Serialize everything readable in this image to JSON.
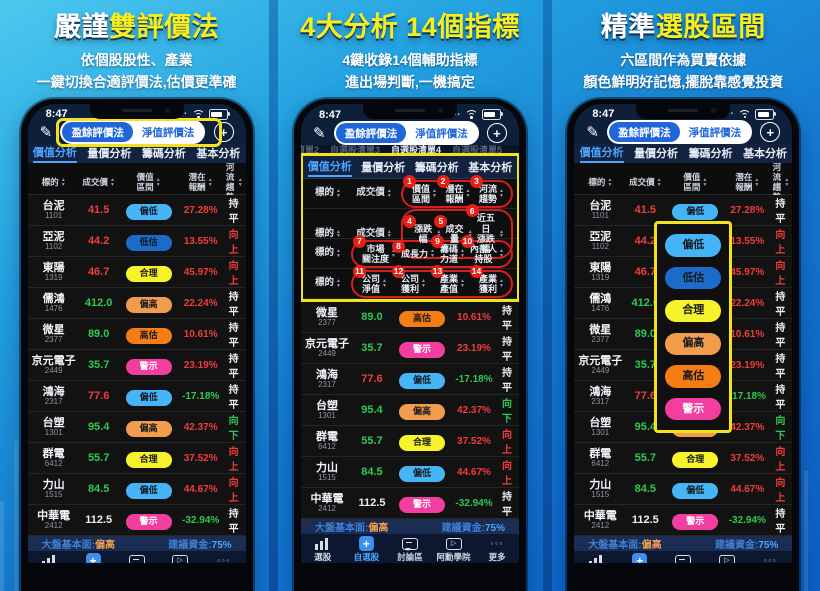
{
  "panels": [
    {
      "id": "dual-valuation",
      "title": [
        {
          "text": "嚴謹",
          "color": "white"
        },
        {
          "text": "雙評價法",
          "color": "yellow"
        }
      ],
      "subtitle": [
        "依個股股性、產業",
        "一鍵切換合適評價法,估價更準確"
      ]
    },
    {
      "id": "four-analysis",
      "title": [
        {
          "text": "4大分析 14個指標",
          "color": "yellow"
        }
      ],
      "subtitle": [
        "4鍵收錄14個輔助指標",
        "進出場判斷,一機搞定"
      ]
    },
    {
      "id": "pick-range",
      "title": [
        {
          "text": "精準",
          "color": "white"
        },
        {
          "text": "選股區間",
          "color": "yellow"
        }
      ],
      "subtitle": [
        "六區間作為買賣依據",
        "顏色鮮明好記憶,擺脫靠感覺投資"
      ]
    }
  ],
  "phone": {
    "status": {
      "time": "8:47"
    },
    "header": {
      "toggle": [
        {
          "label": "盈餘評價法",
          "active": true
        },
        {
          "label": "淨值評價法",
          "active": false
        }
      ],
      "add_label": "+"
    },
    "watchlist_tabs": [
      {
        "label": "清單2",
        "active": false
      },
      {
        "label": "自選股清單3",
        "active": false
      },
      {
        "label": "自選股清單4",
        "active": true
      },
      {
        "label": "自選股清單5",
        "active": false
      }
    ],
    "analysis_tabs": [
      {
        "label": "價值分析",
        "active": true
      },
      {
        "label": "量價分析",
        "active": false
      },
      {
        "label": "籌碼分析",
        "active": false
      },
      {
        "label": "基本分析",
        "active": false
      }
    ],
    "table": {
      "headers": [
        "標的",
        "成交價",
        "價值\n區間",
        "潛在\n報酬",
        "河流\n趨勢"
      ],
      "rows": [
        {
          "name": "台泥",
          "code": "1101",
          "price": "41.5",
          "price_color": "red",
          "badge": "偏低",
          "badge_type": "low",
          "pct": "27.28%",
          "pct_color": "red",
          "trend": "持平",
          "trend_color": "white"
        },
        {
          "name": "亞泥",
          "code": "1102",
          "price": "44.2",
          "price_color": "red",
          "badge": "低估",
          "badge_type": "under",
          "pct": "13.55%",
          "pct_color": "red",
          "trend": "向上",
          "trend_color": "red"
        },
        {
          "name": "東陽",
          "code": "1319",
          "price": "46.7",
          "price_color": "red",
          "badge": "合理",
          "badge_type": "fair",
          "pct": "45.97%",
          "pct_color": "red",
          "trend": "向上",
          "trend_color": "red"
        },
        {
          "name": "儒鴻",
          "code": "1476",
          "price": "412.0",
          "price_color": "green",
          "badge": "偏高",
          "badge_type": "high",
          "pct": "22.24%",
          "pct_color": "red",
          "trend": "持平",
          "trend_color": "white"
        },
        {
          "name": "微星",
          "code": "2377",
          "price": "89.0",
          "price_color": "green",
          "badge": "高估",
          "badge_type": "over",
          "pct": "10.61%",
          "pct_color": "red",
          "trend": "持平",
          "trend_color": "white"
        },
        {
          "name": "京元電子",
          "code": "2449",
          "price": "35.7",
          "price_color": "green",
          "badge": "警示",
          "badge_type": "alert",
          "pct": "23.19%",
          "pct_color": "red",
          "trend": "持平",
          "trend_color": "white"
        },
        {
          "name": "鴻海",
          "code": "2317",
          "price": "77.6",
          "price_color": "red",
          "badge": "偏低",
          "badge_type": "low",
          "pct": "-17.18%",
          "pct_color": "green",
          "trend": "持平",
          "trend_color": "white"
        },
        {
          "name": "台塑",
          "code": "1301",
          "price": "95.4",
          "price_color": "green",
          "badge": "偏高",
          "badge_type": "high",
          "pct": "42.37%",
          "pct_color": "red",
          "trend": "向下",
          "trend_color": "green"
        },
        {
          "name": "群電",
          "code": "6412",
          "price": "55.7",
          "price_color": "green",
          "badge": "合理",
          "badge_type": "fair",
          "pct": "37.52%",
          "pct_color": "red",
          "trend": "向上",
          "trend_color": "red"
        },
        {
          "name": "力山",
          "code": "1515",
          "price": "84.5",
          "price_color": "green",
          "badge": "偏低",
          "badge_type": "low",
          "pct": "44.67%",
          "pct_color": "red",
          "trend": "向上",
          "trend_color": "red"
        },
        {
          "name": "中華電",
          "code": "2412",
          "price": "112.5",
          "price_color": "white",
          "badge": "警示",
          "badge_type": "alert",
          "pct": "-32.94%",
          "pct_color": "green",
          "trend": "持平",
          "trend_color": "white"
        }
      ]
    },
    "summary": {
      "left_label": "大盤基本面:",
      "left_value": "偏高",
      "right_label": "建議資金:",
      "right_value": "75%"
    },
    "nav": [
      {
        "key": "screener",
        "label": "選股",
        "icon": "stock-screener-icon",
        "active": false
      },
      {
        "key": "watchlist",
        "label": "自選股",
        "icon": "watchlist-add-icon",
        "active": true
      },
      {
        "key": "forum",
        "label": "討論區",
        "icon": "forum-icon",
        "active": false
      },
      {
        "key": "academy",
        "label": "阿勳學院",
        "icon": "academy-icon",
        "active": false
      },
      {
        "key": "more",
        "label": "更多",
        "icon": "more-icon",
        "active": false
      }
    ]
  },
  "indicator_rows": [
    {
      "leading": [
        "標的",
        "成交價"
      ],
      "items": [
        {
          "num": "1",
          "label": "價值\n區間"
        },
        {
          "num": "2",
          "label": "潛在\n報酬"
        },
        {
          "num": "3",
          "label": "河流\n趨勢"
        }
      ]
    },
    {
      "leading": [
        "標的",
        "成交價"
      ],
      "items": [
        {
          "num": "4",
          "label": "漲跌幅"
        },
        {
          "num": "5",
          "label": "成交量"
        },
        {
          "num": "6",
          "label": "近五日\n漲跌幅"
        }
      ]
    },
    {
      "leading": [
        "標的"
      ],
      "items": [
        {
          "num": "7",
          "label": "市場\n關注度"
        },
        {
          "num": "8",
          "label": "成長力"
        },
        {
          "num": "9",
          "label": "籌碼\n力道"
        },
        {
          "num": "10",
          "label": "內部人\n持股"
        }
      ]
    },
    {
      "leading": [
        "標的"
      ],
      "items": [
        {
          "num": "11",
          "label": "公司\n淨值"
        },
        {
          "num": "12",
          "label": "公司\n獲利"
        },
        {
          "num": "13",
          "label": "產業\n產值"
        },
        {
          "num": "14",
          "label": "產業\n獲利"
        }
      ]
    }
  ],
  "range_legend": {
    "pills": [
      {
        "label": "偏低",
        "type": "low"
      },
      {
        "label": "低估",
        "type": "under"
      },
      {
        "label": "合理",
        "type": "fair"
      },
      {
        "label": "偏高",
        "type": "high"
      },
      {
        "label": "高估",
        "type": "over"
      },
      {
        "label": "警示",
        "type": "alert"
      }
    ]
  },
  "colors": {
    "highlight_yellow": "#f2e21e",
    "title_yellow": "#f6ef1d",
    "up_red": "#f23c3c",
    "down_green": "#2fc94f",
    "active_blue": "#4da3ff",
    "toggle_blue": "#2066d9",
    "badge_low": "#45b5f7",
    "badge_under": "#1d6bc9",
    "badge_fair": "#f6f22b",
    "badge_high": "#f29d4e",
    "badge_over": "#f57d15",
    "badge_alert": "#f23f9f",
    "annotation_red": "#e52017"
  }
}
